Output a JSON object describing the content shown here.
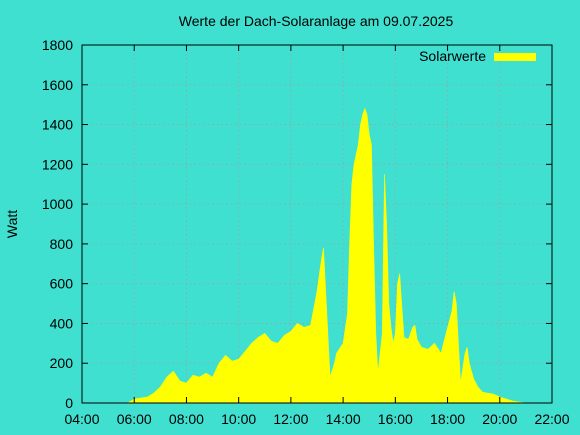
{
  "chart_data": {
    "type": "area",
    "title": "Werte der Dach-Solaranlage am 09.07.2025",
    "xlabel": "",
    "ylabel": "Watt",
    "series": [
      {
        "name": "Solarwerte",
        "color": "#FFFF00",
        "x": [
          "05:45",
          "06:00",
          "06:15",
          "06:30",
          "06:45",
          "07:00",
          "07:15",
          "07:30",
          "07:45",
          "08:00",
          "08:15",
          "08:30",
          "08:45",
          "09:00",
          "09:15",
          "09:30",
          "09:45",
          "10:00",
          "10:15",
          "10:30",
          "10:45",
          "11:00",
          "11:15",
          "11:30",
          "11:45",
          "12:00",
          "12:15",
          "12:30",
          "12:45",
          "13:00",
          "13:10",
          "13:15",
          "13:20",
          "13:30",
          "13:40",
          "13:45",
          "14:00",
          "14:10",
          "14:15",
          "14:20",
          "14:25",
          "14:30",
          "14:35",
          "14:40",
          "14:45",
          "14:50",
          "14:55",
          "15:00",
          "15:05",
          "15:10",
          "15:15",
          "15:20",
          "15:30",
          "15:35",
          "15:40",
          "15:45",
          "15:50",
          "15:55",
          "16:00",
          "16:05",
          "16:10",
          "16:15",
          "16:20",
          "16:30",
          "16:40",
          "16:45",
          "16:50",
          "17:00",
          "17:15",
          "17:30",
          "17:45",
          "18:00",
          "18:10",
          "18:15",
          "18:20",
          "18:25",
          "18:30",
          "18:40",
          "18:45",
          "18:50",
          "19:00",
          "19:10",
          "19:20",
          "19:30",
          "19:45",
          "20:00",
          "20:15",
          "20:30",
          "20:45",
          "21:00"
        ],
        "values": [
          0,
          20,
          25,
          30,
          50,
          80,
          130,
          160,
          110,
          100,
          140,
          130,
          150,
          130,
          200,
          240,
          210,
          220,
          260,
          300,
          330,
          350,
          310,
          300,
          340,
          360,
          400,
          380,
          390,
          560,
          720,
          780,
          560,
          130,
          200,
          250,
          300,
          450,
          800,
          1100,
          1200,
          1250,
          1300,
          1400,
          1450,
          1480,
          1450,
          1350,
          1300,
          800,
          350,
          150,
          350,
          1150,
          900,
          500,
          380,
          300,
          350,
          600,
          650,
          480,
          330,
          320,
          380,
          390,
          320,
          280,
          270,
          300,
          250,
          380,
          460,
          560,
          500,
          300,
          100,
          250,
          280,
          200,
          120,
          80,
          55,
          50,
          45,
          30,
          20,
          10,
          5,
          0
        ]
      }
    ],
    "xlim": [
      "04:00",
      "22:00"
    ],
    "ylim": [
      0,
      1800
    ],
    "xticks": [
      "04:00",
      "06:00",
      "08:00",
      "10:00",
      "12:00",
      "14:00",
      "16:00",
      "18:00",
      "20:00",
      "22:00"
    ],
    "yticks": [
      0,
      200,
      400,
      600,
      800,
      1000,
      1200,
      1400,
      1600,
      1800
    ],
    "grid": true,
    "legend_position": "top-right",
    "colors": {
      "background": "#40E0D0",
      "grid": "#a0a0a0",
      "area": "#FFFF00"
    }
  }
}
